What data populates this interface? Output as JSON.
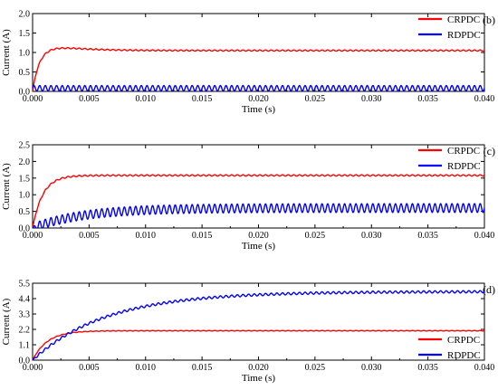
{
  "chart_data": [
    {
      "type": "line",
      "panel_label": "(b)",
      "xlabel": "Time (s)",
      "ylabel": "Current (A)",
      "xlim": [
        0,
        0.04
      ],
      "ylim": [
        0,
        2.0
      ],
      "x_ticks": [
        "0.000",
        "0.005",
        "0.010",
        "0.015",
        "0.020",
        "0.025",
        "0.030",
        "0.035",
        "0.040"
      ],
      "y_ticks": [
        "0.0",
        "0.5",
        "1.0",
        "1.5",
        "2.0"
      ],
      "legend_position": "top-right",
      "series": [
        {
          "name": "CRPDC",
          "color": "#ff0000",
          "tau": 0.0006,
          "final": 1.05,
          "overshoot": 0.08,
          "ripple": 0.015,
          "ripple_period": 0.0005,
          "x": [
            0,
            0.001,
            0.002,
            0.003,
            0.005,
            0.01,
            0.02,
            0.03,
            0.04
          ],
          "values": [
            0.0,
            0.85,
            1.12,
            1.08,
            1.05,
            1.05,
            1.05,
            1.05,
            1.05
          ]
        },
        {
          "name": "RDPDC",
          "color": "#0000ff",
          "tau": 5e-05,
          "final": 0.08,
          "overshoot": 0,
          "ripple": 0.07,
          "ripple_period": 0.0005,
          "x": [
            0,
            0.001,
            0.005,
            0.01,
            0.02,
            0.03,
            0.04
          ],
          "values": [
            0.08,
            0.08,
            0.08,
            0.08,
            0.08,
            0.08,
            0.08
          ]
        }
      ]
    },
    {
      "type": "line",
      "panel_label": "(c)",
      "xlabel": "Time (s)",
      "ylabel": "Current (A)",
      "xlim": [
        0,
        0.04
      ],
      "ylim": [
        0,
        2.5
      ],
      "x_ticks": [
        "0.000",
        "0.005",
        "0.010",
        "0.015",
        "0.020",
        "0.025",
        "0.030",
        "0.035",
        "0.040"
      ],
      "y_ticks": [
        "0.0",
        "0.5",
        "1.0",
        "1.5",
        "2.0",
        "2.5"
      ],
      "legend_position": "top-right",
      "series": [
        {
          "name": "CRPDC",
          "color": "#ff0000",
          "tau": 0.0009,
          "final": 1.58,
          "overshoot": 0,
          "ripple": 0.02,
          "ripple_period": 0.0005,
          "x": [
            0,
            0.001,
            0.002,
            0.003,
            0.005,
            0.01,
            0.02,
            0.03,
            0.04
          ],
          "values": [
            0.0,
            1.0,
            1.4,
            1.53,
            1.58,
            1.58,
            1.58,
            1.58,
            1.58
          ]
        },
        {
          "name": "RDPDC",
          "color": "#0000ff",
          "tau": 0.0045,
          "final": 0.6,
          "overshoot": 0,
          "ripple": 0.13,
          "ripple_period": 0.0005,
          "x": [
            0,
            0.005,
            0.01,
            0.015,
            0.02,
            0.03,
            0.04
          ],
          "values": [
            0.12,
            0.42,
            0.54,
            0.58,
            0.6,
            0.6,
            0.6
          ]
        }
      ]
    },
    {
      "type": "line",
      "panel_label": "(d)",
      "xlabel": "Time (s)",
      "ylabel": "Current (A)",
      "xlim": [
        0,
        0.04
      ],
      "ylim": [
        0,
        5.5
      ],
      "x_ticks": [
        "0.000",
        "0.005",
        "0.010",
        "0.015",
        "0.020",
        "0.025",
        "0.030",
        "0.035",
        "0.040"
      ],
      "y_ticks": [
        "0.0",
        "1.1",
        "2.2",
        "3.3",
        "4.4",
        "5.5"
      ],
      "legend_position": "bottom-right",
      "series": [
        {
          "name": "CRPDC",
          "color": "#ff0000",
          "tau": 0.0013,
          "final": 2.1,
          "overshoot": 0,
          "ripple": 0.02,
          "ripple_period": 0.0005,
          "x": [
            0,
            0.002,
            0.004,
            0.006,
            0.01,
            0.02,
            0.03,
            0.04
          ],
          "values": [
            0.0,
            1.6,
            2.0,
            2.08,
            2.1,
            2.1,
            2.1,
            2.1
          ]
        },
        {
          "name": "RDPDC",
          "color": "#0000ff",
          "tau": 0.0065,
          "final": 4.9,
          "overshoot": 0,
          "ripple": 0.08,
          "ripple_period": 0.0005,
          "x": [
            0,
            0.005,
            0.01,
            0.015,
            0.02,
            0.03,
            0.04
          ],
          "values": [
            0.0,
            2.65,
            3.86,
            4.42,
            4.66,
            4.85,
            4.9
          ]
        }
      ]
    }
  ]
}
